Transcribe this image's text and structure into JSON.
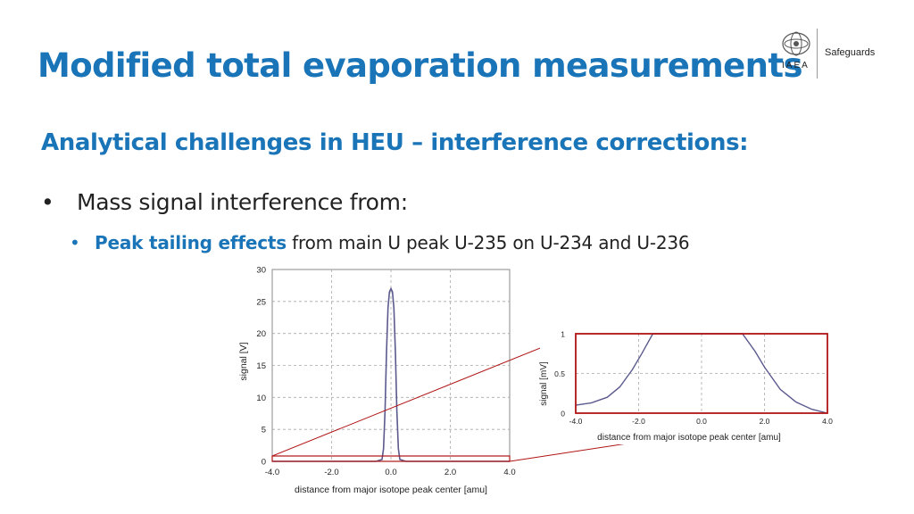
{
  "header": {
    "title": "Modified total evaporation measurements",
    "logo_text": "IAEA",
    "logo_sub": "Safeguards"
  },
  "content": {
    "subtitle": "Analytical challenges in HEU – interference corrections:",
    "bullet1": "Mass signal interference from:",
    "bullet2_highlight": "Peak tailing effects",
    "bullet2_rest": " from main U peak U-235 on U-234 and U-236"
  },
  "colors": {
    "accent": "#1a74b8",
    "curve": "#5b5a8e",
    "zoom_box": "#b01414"
  },
  "chart_data": [
    {
      "type": "line",
      "title": "",
      "xlabel": "distance from major isotope peak center [amu]",
      "ylabel": "signal [V]",
      "xlim": [
        -4.0,
        4.0
      ],
      "ylim": [
        0,
        30
      ],
      "xticks": [
        "-4.0",
        "-2.0",
        "0.0",
        "2.0",
        "4.0"
      ],
      "yticks": [
        "0",
        "5",
        "10",
        "15",
        "20",
        "25",
        "30"
      ],
      "grid": true,
      "series": [
        {
          "x": [
            -4.0,
            -0.8,
            -0.5,
            -0.3,
            -0.25,
            -0.2,
            -0.15,
            -0.1,
            -0.05,
            0.0,
            0.05,
            0.1,
            0.15,
            0.2,
            0.25,
            0.3,
            0.5,
            0.8,
            4.0
          ],
          "y": [
            0,
            0,
            0,
            0.3,
            2,
            8,
            17,
            24,
            26.5,
            27,
            26.5,
            24,
            17,
            8,
            2,
            0.3,
            0,
            0,
            0
          ]
        }
      ]
    },
    {
      "type": "line",
      "title": "",
      "xlabel": "distance from major isotope peak center [amu]",
      "ylabel": "signal [mV]",
      "xlim": [
        -4.0,
        4.0
      ],
      "ylim": [
        0,
        1
      ],
      "xticks": [
        "-4.0",
        "-2.0",
        "0.0",
        "2.0",
        "4.0"
      ],
      "yticks": [
        "0",
        "0.5",
        "1"
      ],
      "grid": true,
      "series": [
        {
          "x": [
            -4.0,
            -3.5,
            -3.0,
            -2.6,
            -2.2,
            -1.9,
            -1.55,
            1.3,
            1.7,
            2.0,
            2.5,
            3.0,
            3.5,
            4.0
          ],
          "y": [
            0.1,
            0.13,
            0.2,
            0.33,
            0.55,
            0.75,
            1.0,
            1.0,
            0.78,
            0.58,
            0.3,
            0.14,
            0.05,
            0.0
          ]
        }
      ]
    }
  ]
}
